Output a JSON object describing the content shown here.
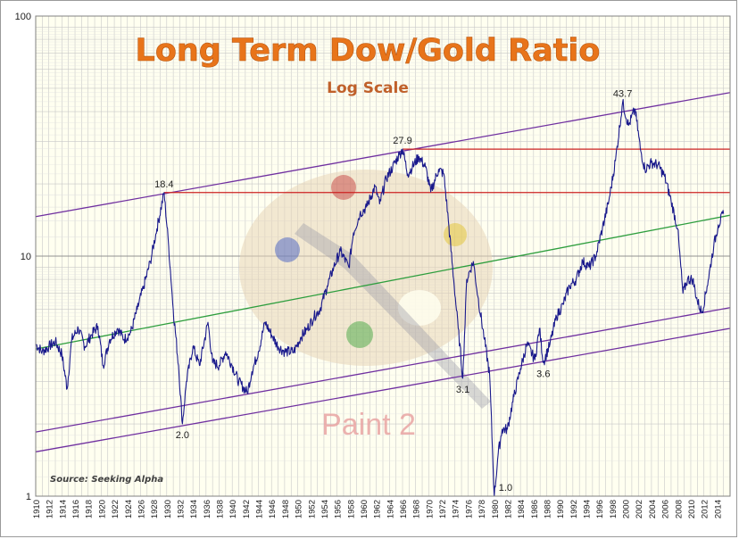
{
  "chart_data": {
    "type": "line",
    "title": "Long Term Dow/Gold Ratio",
    "subtitle": "Log Scale",
    "source": "Source: Seeking Alpha",
    "watermark": "Paint 2",
    "y_scale": "log",
    "ylim": [
      1,
      100
    ],
    "y_ticks": [
      "1",
      "10",
      "100"
    ],
    "xlim": [
      1910,
      2016
    ],
    "x_ticks": [
      "1910",
      "1912",
      "1914",
      "1916",
      "1918",
      "1920",
      "1922",
      "1924",
      "1926",
      "1928",
      "1930",
      "1932",
      "1934",
      "1936",
      "1938",
      "1940",
      "1942",
      "1944",
      "1946",
      "1948",
      "1950",
      "1952",
      "1954",
      "1956",
      "1958",
      "1960",
      "1962",
      "1964",
      "1966",
      "1968",
      "1970",
      "1972",
      "1974",
      "1976",
      "1978",
      "1980",
      "1982",
      "1984",
      "1986",
      "1988",
      "1990",
      "1992",
      "1994",
      "1996",
      "1998",
      "2000",
      "2002",
      "2004",
      "2006",
      "2008",
      "2010",
      "2012",
      "2014"
    ],
    "grid": true,
    "series": [
      {
        "color": "#1a1a8c",
        "x": [
          1910,
          1911,
          1912,
          1913,
          1914,
          1914.8,
          1915.5,
          1916.5,
          1917.5,
          1918.5,
          1919.5,
          1920.3,
          1921.3,
          1922.5,
          1923.5,
          1924.5,
          1925.5,
          1926.5,
          1927.5,
          1928.5,
          1929.6,
          1930.3,
          1931,
          1931.8,
          1932.4,
          1933,
          1934,
          1935,
          1936.3,
          1937,
          1938,
          1939,
          1940,
          1941,
          1942.3,
          1943,
          1944,
          1945,
          1946.2,
          1947,
          1948,
          1949.4,
          1950.5,
          1951.5,
          1952.5,
          1953.4,
          1954.5,
          1955.5,
          1956.5,
          1957.8,
          1958.5,
          1959.5,
          1960.5,
          1961.8,
          1962.5,
          1963.5,
          1964.5,
          1965.5,
          1966,
          1966.8,
          1967.5,
          1968.5,
          1969.5,
          1970.3,
          1971.5,
          1972.3,
          1973,
          1973.8,
          1974.5,
          1975.2,
          1975.8,
          1976.8,
          1977.5,
          1978.5,
          1979.3,
          1980,
          1980.6,
          1981.2,
          1982,
          1983,
          1984,
          1985,
          1986.2,
          1986.9,
          1987.5,
          1988.5,
          1989.5,
          1990.5,
          1991.5,
          1992.5,
          1993.5,
          1994.5,
          1995.5,
          1996.5,
          1997.5,
          1998.5,
          1999.6,
          2000.5,
          2001.5,
          2002.3,
          2003,
          2004,
          2005,
          2006,
          2007,
          2008,
          2008.8,
          2009.5,
          2010.3,
          2011,
          2011.7,
          2012.5,
          2013.5,
          2014.2,
          2015
        ],
        "y": [
          4.3,
          4.0,
          4.2,
          4.4,
          3.9,
          2.8,
          4.5,
          5.0,
          4.2,
          4.7,
          5.1,
          3.5,
          4.5,
          5.0,
          4.5,
          4.8,
          6.0,
          7.5,
          9.5,
          13.0,
          18.4,
          11.0,
          6.0,
          3.5,
          2.0,
          3.0,
          4.2,
          3.5,
          5.3,
          3.6,
          3.5,
          4.0,
          3.5,
          3.0,
          2.7,
          3.3,
          4.0,
          5.3,
          4.6,
          4.2,
          4.0,
          4.0,
          4.6,
          5.0,
          5.6,
          6.0,
          7.5,
          9.0,
          10.5,
          9.0,
          12.5,
          15.0,
          16.0,
          19.5,
          16.5,
          21.0,
          23.5,
          26.5,
          27.9,
          22.0,
          23.5,
          26.0,
          23.5,
          18.5,
          23.0,
          22.0,
          14.0,
          8.0,
          5.0,
          3.1,
          8.0,
          9.5,
          6.8,
          4.5,
          3.2,
          1.0,
          1.5,
          1.9,
          1.9,
          2.6,
          3.4,
          4.3,
          3.7,
          5.0,
          3.6,
          4.3,
          5.6,
          6.3,
          7.5,
          8.0,
          9.5,
          9.0,
          10.0,
          13.0,
          17.0,
          25.0,
          43.7,
          35.0,
          41.0,
          28.0,
          23.0,
          24.5,
          24.0,
          21.5,
          17.0,
          13.0,
          7.0,
          8.0,
          8.0,
          6.5,
          5.8,
          7.5,
          11.0,
          13.5,
          15.0
        ]
      }
    ],
    "annotations": [
      {
        "text": "18.4",
        "x": 1929.6,
        "y": 18.4,
        "pos": "above"
      },
      {
        "text": "2.0",
        "x": 1932.4,
        "y": 2.0,
        "pos": "below"
      },
      {
        "text": "27.9",
        "x": 1966,
        "y": 27.9,
        "pos": "above"
      },
      {
        "text": "3.1",
        "x": 1975.2,
        "y": 3.1,
        "pos": "below"
      },
      {
        "text": "1.0",
        "x": 1980,
        "y": 1.0,
        "pos": "below-right"
      },
      {
        "text": "3.6",
        "x": 1987.5,
        "y": 3.6,
        "pos": "below"
      },
      {
        "text": "43.7",
        "x": 1999.6,
        "y": 43.7,
        "pos": "above"
      }
    ],
    "trend_lines": [
      {
        "color": "#7030a0",
        "x": [
          1910,
          2016
        ],
        "y": [
          14.6,
          48.0
        ]
      },
      {
        "color": "#7030a0",
        "x": [
          1910,
          2016
        ],
        "y": [
          1.85,
          6.1
        ]
      },
      {
        "color": "#7030a0",
        "x": [
          1910,
          2016
        ],
        "y": [
          1.53,
          5.0
        ]
      },
      {
        "color": "#2e9e3e",
        "x": [
          1910,
          2016
        ],
        "y": [
          4.1,
          14.8
        ]
      },
      {
        "color": "#cc2222",
        "x": [
          1929.6,
          2016
        ],
        "y": [
          18.4,
          18.4
        ]
      },
      {
        "color": "#cc2222",
        "x": [
          1966,
          2016
        ],
        "y": [
          27.9,
          27.9
        ]
      }
    ],
    "colors": {
      "title": "#e8741a",
      "subtitle": "#c0602a",
      "plot_background": "#fffff0",
      "grid": "#c8c8c8",
      "watermark": "#e8a0a0"
    }
  }
}
